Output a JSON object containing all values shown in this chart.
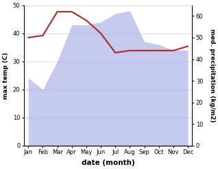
{
  "months": [
    "Jan",
    "Feb",
    "Mar",
    "Apr",
    "May",
    "Jun",
    "Jul",
    "Aug",
    "Sep",
    "Oct",
    "Nov",
    "Dec"
  ],
  "max_temp": [
    24,
    20,
    30,
    43,
    43,
    44,
    47,
    48,
    37,
    36,
    34,
    34
  ],
  "precipitation": [
    50,
    51,
    62,
    62,
    58,
    52,
    43,
    44,
    44,
    44,
    44,
    46
  ],
  "temp_ylim": [
    0,
    50
  ],
  "precip_ylim": [
    0,
    65
  ],
  "temp_fill_color": "#b0b8e8",
  "precip_color": "#b03030",
  "xlabel": "date (month)",
  "ylabel_left": "max temp (C)",
  "ylabel_right": "med. precipitation (kg/m2)",
  "bg_color": "#ffffff",
  "precip_yticks": [
    0,
    10,
    20,
    30,
    40,
    50,
    60
  ],
  "temp_yticks": [
    0,
    10,
    20,
    30,
    40,
    50
  ],
  "figwidth": 3.18,
  "figheight": 2.47,
  "dpi": 100
}
